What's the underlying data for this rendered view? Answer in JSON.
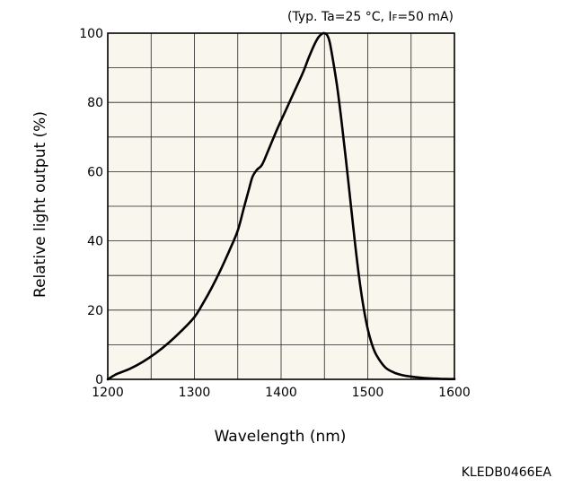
{
  "chart_data": {
    "type": "line",
    "title": "",
    "conditions": {
      "prefix": "(Typ. Ta=25 °C, I",
      "subscript": "F",
      "suffix": "=50 mA)"
    },
    "xlabel": "Wavelength (nm)",
    "ylabel": "Relative light output (%)",
    "xlim": [
      1200,
      1600
    ],
    "ylim": [
      0,
      100
    ],
    "xticks": [
      1200,
      1300,
      1400,
      1500,
      1600
    ],
    "xtick_labels": [
      "1200",
      "1300",
      "1400",
      "1500",
      "1600"
    ],
    "yticks": [
      0,
      20,
      40,
      60,
      80,
      100
    ],
    "ytick_labels": [
      "0",
      "20",
      "40",
      "60",
      "80",
      "100"
    ],
    "x_minor_step": 50,
    "y_minor_step": 10,
    "grid": true,
    "plot_background": "#f8f6ed",
    "line_color": "#000000",
    "series": [
      {
        "x": [
          1200,
          1210,
          1225,
          1240,
          1255,
          1270,
          1285,
          1300,
          1310,
          1320,
          1330,
          1340,
          1350,
          1357,
          1363,
          1367,
          1372,
          1378,
          1385,
          1395,
          1405,
          1415,
          1425,
          1432,
          1438,
          1443,
          1447,
          1450,
          1453,
          1456,
          1460,
          1465,
          1470,
          1475,
          1480,
          1485,
          1490,
          1495,
          1500,
          1505,
          1510,
          1520,
          1530,
          1540,
          1550,
          1560,
          1570,
          1580,
          1590,
          1600
        ],
        "y": [
          0,
          1.5,
          3,
          5,
          7.5,
          10.5,
          14,
          18,
          22,
          26.5,
          31.5,
          37,
          43,
          49.5,
          55,
          58.5,
          60.5,
          62,
          66,
          72,
          77.5,
          83,
          88.5,
          93,
          96.5,
          98.8,
          99.8,
          100,
          99.5,
          97.5,
          92,
          84,
          74,
          63,
          51.5,
          40,
          29.5,
          21,
          14.5,
          10,
          7,
          3.5,
          2,
          1.2,
          0.8,
          0.5,
          0.3,
          0.2,
          0.1,
          0.1
        ]
      }
    ]
  },
  "figure_code": "KLEDB0466EA"
}
